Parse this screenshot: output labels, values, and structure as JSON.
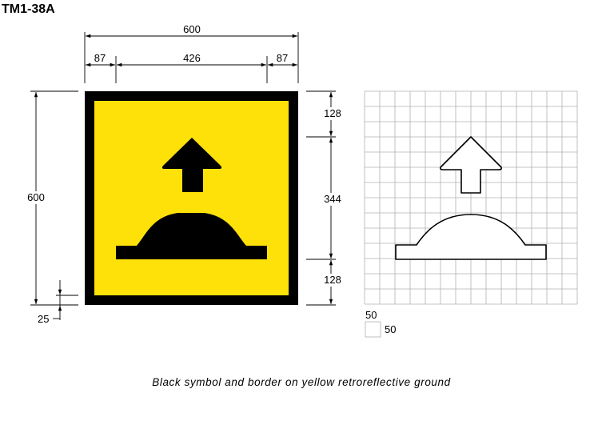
{
  "sign": {
    "code": "TM1-38A",
    "caption": "Black symbol and border on yellow retroreflective ground",
    "colors": {
      "ground": "#FFE10A",
      "border": "#000000",
      "symbol": "#000000",
      "grid": "#B0B0B0"
    }
  },
  "dimensions": {
    "overall_width": "600",
    "left_border": "87",
    "inner_width": "426",
    "right_border": "87",
    "overall_height": "600",
    "top_segment": "128",
    "middle_segment": "344",
    "bottom_segment": "128",
    "border_offset": "25"
  },
  "grid_legend": {
    "cell_height": "50",
    "cell_width": "50"
  }
}
